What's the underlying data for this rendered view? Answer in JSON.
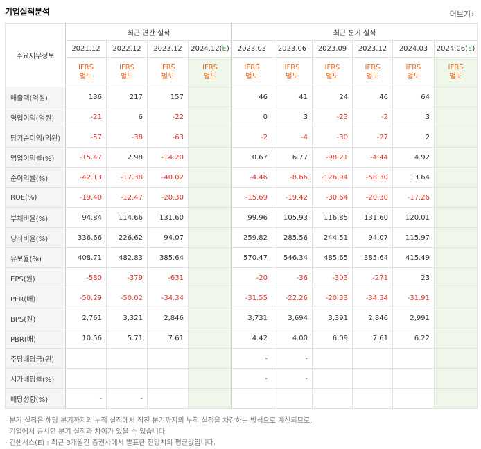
{
  "header": {
    "title": "기업실적분석",
    "more": "더보기"
  },
  "table": {
    "row_label_header": "주요재무정보",
    "annual_group": "최근 연간 실적",
    "quarter_group": "최근 분기 실적",
    "annual_periods": [
      "2021.12",
      "2022.12",
      "2023.12",
      "2024.12(E)"
    ],
    "quarter_periods": [
      "2023.03",
      "2023.06",
      "2023.09",
      "2023.12",
      "2024.03",
      "2024.06(E)"
    ],
    "ifrs_line1": "IFRS",
    "ifrs_line2": "별도",
    "rows": [
      {
        "label": "매출액(억원)",
        "annual": [
          "136",
          "217",
          "157",
          ""
        ],
        "quarter": [
          "46",
          "41",
          "24",
          "46",
          "64",
          ""
        ]
      },
      {
        "label": "영업이익(억원)",
        "annual": [
          "-21",
          "6",
          "-22",
          ""
        ],
        "quarter": [
          "0",
          "3",
          "-23",
          "-2",
          "3",
          ""
        ]
      },
      {
        "label": "당기순이익(억원)",
        "annual": [
          "-57",
          "-38",
          "-63",
          ""
        ],
        "quarter": [
          "-2",
          "-4",
          "-30",
          "-27",
          "2",
          ""
        ]
      },
      {
        "label": "영업이익률(%)",
        "annual": [
          "-15.47",
          "2.98",
          "-14.20",
          ""
        ],
        "quarter": [
          "0.67",
          "6.77",
          "-98.21",
          "-4.44",
          "4.92",
          ""
        ]
      },
      {
        "label": "순이익률(%)",
        "annual": [
          "-42.13",
          "-17.38",
          "-40.02",
          ""
        ],
        "quarter": [
          "-4.46",
          "-8.66",
          "-126.94",
          "-58.30",
          "3.64",
          ""
        ]
      },
      {
        "label": "ROE(%)",
        "annual": [
          "-19.40",
          "-12.47",
          "-20.30",
          ""
        ],
        "quarter": [
          "-15.69",
          "-19.42",
          "-30.64",
          "-20.30",
          "-17.26",
          ""
        ]
      },
      {
        "label": "부채비율(%)",
        "annual": [
          "94.84",
          "114.66",
          "131.60",
          ""
        ],
        "quarter": [
          "99.96",
          "105.93",
          "116.85",
          "131.60",
          "120.01",
          ""
        ]
      },
      {
        "label": "당좌비율(%)",
        "annual": [
          "336.66",
          "226.62",
          "94.07",
          ""
        ],
        "quarter": [
          "259.82",
          "285.56",
          "244.51",
          "94.07",
          "115.97",
          ""
        ]
      },
      {
        "label": "유보율(%)",
        "annual": [
          "408.71",
          "482.83",
          "385.64",
          ""
        ],
        "quarter": [
          "570.47",
          "546.34",
          "485.65",
          "385.64",
          "415.49",
          ""
        ]
      },
      {
        "label": "EPS(원)",
        "annual": [
          "-580",
          "-379",
          "-631",
          ""
        ],
        "quarter": [
          "-20",
          "-36",
          "-303",
          "-271",
          "23",
          ""
        ]
      },
      {
        "label": "PER(배)",
        "annual": [
          "-50.29",
          "-50.02",
          "-34.34",
          ""
        ],
        "quarter": [
          "-31.55",
          "-22.26",
          "-20.33",
          "-34.34",
          "-31.91",
          ""
        ]
      },
      {
        "label": "BPS(원)",
        "annual": [
          "2,761",
          "3,321",
          "2,846",
          ""
        ],
        "quarter": [
          "3,731",
          "3,694",
          "3,391",
          "2,846",
          "2,991",
          ""
        ]
      },
      {
        "label": "PBR(배)",
        "annual": [
          "10.56",
          "5.71",
          "7.61",
          ""
        ],
        "quarter": [
          "4.42",
          "4.00",
          "6.09",
          "7.61",
          "6.22",
          ""
        ]
      },
      {
        "label": "주당배당금(원)",
        "annual": [
          "",
          "",
          "",
          ""
        ],
        "quarter": [
          "-",
          "-",
          "",
          "",
          "",
          ""
        ]
      },
      {
        "label": "시가배당률(%)",
        "annual": [
          "",
          "",
          "",
          ""
        ],
        "quarter": [
          "-",
          "-",
          "",
          "",
          "",
          ""
        ]
      },
      {
        "label": "배당성향(%)",
        "annual": [
          "-",
          "-",
          "",
          ""
        ],
        "quarter": [
          "",
          "",
          "",
          "",
          "",
          ""
        ]
      }
    ]
  },
  "notes": [
    "· 분기 실적은 해당 분기까지의 누적 실적에서 직전 분기까지의 누적 실적을 차감하는 방식으로 계산되므로,",
    "  기업에서 공시한 분기 실적과 차이가 있을 수 있습니다.",
    "· 컨센서스(E) : 최근 3개월간 증권사에서 발표한 전망치의 평균값입니다."
  ],
  "colors": {
    "negative": "#e0352b",
    "ifrs": "#f36a1d",
    "estimate_bg": "#eef7ea",
    "estimate_mark": "#3a9b4a",
    "label_bg": "#f5f5f5"
  }
}
